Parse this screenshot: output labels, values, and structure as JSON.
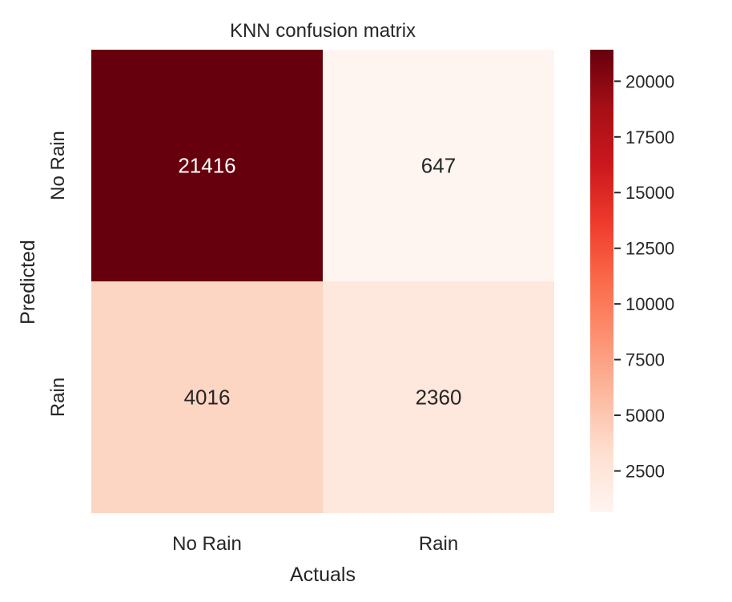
{
  "chart_data": {
    "type": "heatmap",
    "title": "KNN confusion matrix",
    "xlabel": "Actuals",
    "ylabel": "Predicted",
    "x_categories": [
      "No Rain",
      "Rain"
    ],
    "y_categories": [
      "No Rain",
      "Rain"
    ],
    "values": [
      [
        21416,
        647
      ],
      [
        4016,
        2360
      ]
    ],
    "colormap": "Reds",
    "colorbar": {
      "min": 647,
      "max": 21416,
      "ticks": [
        2500,
        5000,
        7500,
        10000,
        12500,
        15000,
        17500,
        20000
      ],
      "tick_labels": [
        "2500",
        "5000",
        "7500",
        "10000",
        "12500",
        "15000",
        "17500",
        "20000"
      ]
    },
    "grid": false,
    "legend": "colorbar-right"
  },
  "colors": {
    "text_dark": "#262626",
    "text_light": "#ffffff",
    "colormap_stops": [
      "#fff5f0",
      "#fee0d2",
      "#fcbba1",
      "#fc9272",
      "#fb6a4a",
      "#ef3b2c",
      "#cb181d",
      "#a50f15",
      "#67000d"
    ]
  }
}
